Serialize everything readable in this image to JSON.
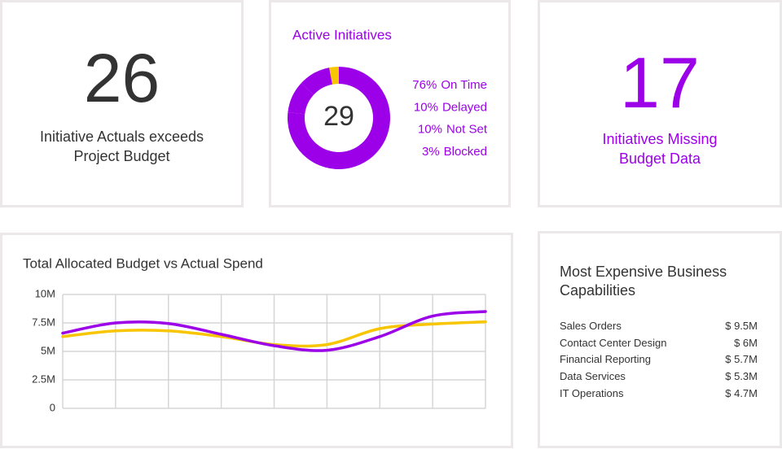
{
  "cards": [
    {
      "value": "26",
      "label": "Initiative Actuals exceeds Project Budget"
    },
    {
      "value": "17",
      "label": "Initiatives Missing Budget Data"
    }
  ],
  "chart_data": [
    {
      "type": "pie",
      "title": "Active Initiatives",
      "total": 29,
      "categories": [
        "On Time",
        "Delayed",
        "Not Set",
        "Blocked"
      ],
      "values": [
        76,
        10,
        10,
        3
      ],
      "value_labels": [
        "76%",
        "10%",
        "10%",
        "3%"
      ],
      "colors": [
        "#9b00e8",
        "#9b00e8",
        "#9b00e8",
        "#f7c600"
      ]
    },
    {
      "type": "line",
      "title": "Total Allocated Budget vs Actual Spend",
      "categories": [
        null,
        null,
        null,
        null,
        null,
        null,
        null,
        null,
        null
      ],
      "series": [
        {
          "color": "#f7c600",
          "values": [
            6300000.0,
            6800000.0,
            6800000.0,
            6300000.0,
            5600000.0,
            5600000.0,
            7000000.0,
            7400000.0,
            7600000.0
          ]
        },
        {
          "color": "#9b00e8",
          "values": [
            6600000.0,
            7500000.0,
            7450000.0,
            6500000.0,
            5500000.0,
            5100000.0,
            6300000.0,
            8100000.0,
            8500000.0
          ]
        }
      ],
      "ylim": [
        0,
        10000000
      ],
      "yticks": [
        0,
        {
          "value": 2500000,
          "label": "2.5M"
        },
        {
          "value": 5000000,
          "label": "5M"
        },
        {
          "value": 7500000,
          "label": "7.5M"
        },
        {
          "value": 10000000,
          "label": "10M"
        }
      ],
      "grid": true
    }
  ],
  "table": {
    "title": "Most Expensive Business Capabilities",
    "rows": [
      [
        "Sales Orders",
        "$ 9.5M"
      ],
      [
        "Contact Center Design",
        "$ 6M"
      ],
      [
        "Financial Reporting",
        "$ 5.7M"
      ],
      [
        "Data Services",
        "$ 5.3M"
      ],
      [
        "IT Operations",
        "$ 4.7M"
      ]
    ]
  }
}
